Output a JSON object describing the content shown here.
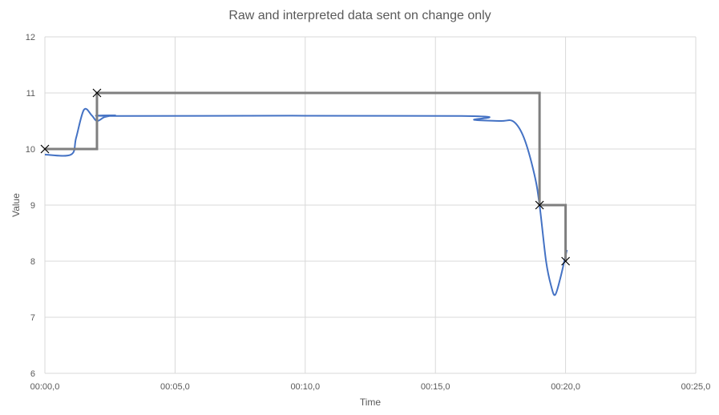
{
  "chart_data": {
    "type": "line",
    "title": "Raw and interpreted data sent on change only",
    "xlabel": "Time",
    "ylabel": "Value",
    "x_unit": "seconds",
    "xlim": [
      0,
      25
    ],
    "ylim": [
      6,
      12
    ],
    "x_ticks": [
      0,
      5,
      10,
      15,
      20,
      25
    ],
    "x_tick_labels": [
      "00:00,0",
      "00:05,0",
      "00:10,0",
      "00:15,0",
      "00:20,0",
      "00:25,0"
    ],
    "y_ticks": [
      6,
      7,
      8,
      9,
      10,
      11,
      12
    ],
    "y_tick_labels": [
      "6",
      "7",
      "8",
      "9",
      "10",
      "11",
      "12"
    ],
    "grid": true,
    "series": [
      {
        "color": "#4472c4",
        "style": "smooth-line",
        "points": [
          {
            "x": 0,
            "y": 9.9
          },
          {
            "x": 1.0,
            "y": 9.9
          },
          {
            "x": 1.2,
            "y": 10.2
          },
          {
            "x": 1.5,
            "y": 10.7
          },
          {
            "x": 1.8,
            "y": 10.6
          },
          {
            "x": 2.0,
            "y": 10.5
          },
          {
            "x": 2.3,
            "y": 10.57
          },
          {
            "x": 2.7,
            "y": 10.6
          },
          {
            "x": 3.0,
            "y": 10.59
          },
          {
            "x": 16.0,
            "y": 10.59
          },
          {
            "x": 16.5,
            "y": 10.52
          },
          {
            "x": 17.5,
            "y": 10.5
          },
          {
            "x": 18.0,
            "y": 10.49
          },
          {
            "x": 18.4,
            "y": 10.2
          },
          {
            "x": 18.8,
            "y": 9.55
          },
          {
            "x": 19.0,
            "y": 9.0
          },
          {
            "x": 19.25,
            "y": 8.0
          },
          {
            "x": 19.45,
            "y": 7.55
          },
          {
            "x": 19.6,
            "y": 7.4
          },
          {
            "x": 19.8,
            "y": 7.7
          },
          {
            "x": 20.0,
            "y": 8.1
          },
          {
            "x": 20.05,
            "y": 8.2
          }
        ]
      },
      {
        "color": "#7f7f7f",
        "style": "step-line",
        "marker": "x",
        "points": [
          {
            "x": 0,
            "y": 10
          },
          {
            "x": 2,
            "y": 10
          },
          {
            "x": 2,
            "y": 11
          },
          {
            "x": 19,
            "y": 11
          },
          {
            "x": 19,
            "y": 9
          },
          {
            "x": 20,
            "y": 9
          },
          {
            "x": 20,
            "y": 8
          }
        ],
        "marker_points": [
          {
            "x": 0,
            "y": 10
          },
          {
            "x": 2,
            "y": 11
          },
          {
            "x": 19,
            "y": 9
          },
          {
            "x": 20,
            "y": 8
          }
        ]
      }
    ]
  }
}
